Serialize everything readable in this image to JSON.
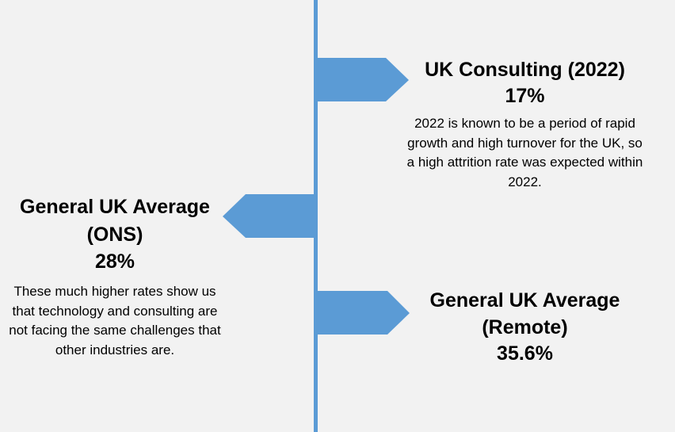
{
  "colors": {
    "accent": "#5b9bd5",
    "background": "#f2f2f2",
    "text": "#000000"
  },
  "entries": [
    {
      "side": "right",
      "title": "UK Consulting (2022)",
      "value": "17%",
      "description": "2022 is known to be a period of rapid growth and high turnover for the UK, so a high attrition rate was expected within 2022."
    },
    {
      "side": "left",
      "title": "General UK Average (ONS)",
      "value": "28%",
      "description": "These much higher rates show us that technology and consulting are not facing the same challenges that other industries are."
    },
    {
      "side": "right",
      "title": "General UK Average (Remote)",
      "value": "35.6%",
      "description": ""
    }
  ]
}
